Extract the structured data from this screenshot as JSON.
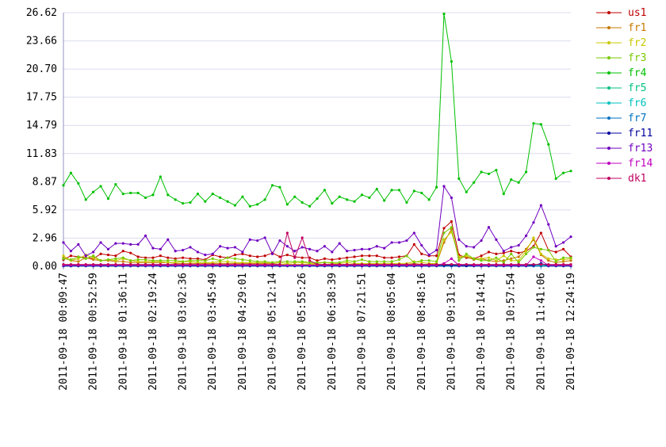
{
  "chart_data": {
    "type": "line",
    "grid": true,
    "legend": "right",
    "ylim": [
      0,
      26.62
    ],
    "yticks": [
      {
        "value": 0,
        "label": "0.00"
      },
      2.96,
      5.92,
      8.87,
      11.83,
      14.79,
      17.75,
      {
        "value": 20.7,
        "label": "20.70"
      },
      23.66,
      26.62
    ],
    "categories": [
      "2011-09-18 00:09:47",
      null,
      null,
      null,
      "2011-09-18 00:52:59",
      null,
      null,
      null,
      "2011-09-18 01:36:11",
      null,
      null,
      null,
      "2011-09-18 02:19:24",
      null,
      null,
      null,
      "2011-09-18 03:02:36",
      null,
      null,
      null,
      "2011-09-18 03:45:49",
      null,
      null,
      null,
      "2011-09-18 04:29:01",
      null,
      null,
      null,
      "2011-09-18 05:12:14",
      null,
      null,
      null,
      "2011-09-18 05:55:26",
      null,
      null,
      null,
      "2011-09-18 06:38:39",
      null,
      null,
      null,
      "2011-09-18 07:21:51",
      null,
      null,
      null,
      "2011-09-18 08:05:04",
      null,
      null,
      null,
      "2011-09-18 08:48:16",
      null,
      null,
      null,
      "2011-09-18 09:31:29",
      null,
      null,
      null,
      "2011-09-18 10:14:41",
      null,
      null,
      null,
      "2011-09-18 10:57:54",
      null,
      null,
      null,
      "2011-09-18 11:41:06",
      null,
      null,
      null,
      "2011-09-18 12:24:19"
    ],
    "series": [
      {
        "name": "us1",
        "color": "#c00000",
        "values": [
          0.7,
          1.1,
          1.0,
          0.9,
          0.8,
          1.3,
          1.2,
          1.1,
          1.6,
          1.4,
          1.0,
          0.9,
          0.9,
          1.1,
          0.9,
          0.8,
          0.9,
          0.8,
          0.8,
          0.7,
          1.2,
          1.0,
          0.9,
          1.2,
          1.3,
          1.1,
          1.0,
          1.1,
          1.4,
          1.0,
          1.2,
          1.0,
          0.9,
          0.9,
          0.6,
          0.8,
          0.7,
          0.8,
          0.9,
          1.0,
          1.1,
          1.1,
          1.1,
          0.9,
          0.9,
          1.0,
          1.1,
          2.3,
          1.3,
          1.1,
          1.1,
          4.0,
          4.7,
          1.2,
          0.9,
          0.8,
          1.1,
          1.5,
          1.3,
          1.4,
          1.6,
          1.4,
          1.6,
          2.1,
          3.5,
          1.7,
          1.5,
          1.8,
          1.0
        ]
      },
      {
        "name": "fr1",
        "color": "#c87800",
        "values": [
          0.9,
          0.6,
          0.5,
          0.9,
          0.7,
          0.6,
          0.6,
          0.5,
          0.5,
          0.4,
          0.4,
          0.4,
          0.4,
          0.4,
          0.4,
          0.3,
          0.3,
          0.3,
          0.3,
          0.3,
          0.3,
          0.3,
          0.3,
          0.3,
          0.3,
          0.3,
          0.3,
          0.3,
          0.3,
          0.2,
          0.2,
          0.2,
          0.2,
          0.2,
          0.2,
          0.2,
          0.2,
          0.2,
          0.2,
          0.2,
          0.2,
          0.2,
          0.2,
          0.2,
          0.2,
          0.2,
          0.2,
          0.3,
          0.2,
          0.2,
          0.3,
          2.5,
          3.9,
          0.9,
          1.0,
          0.7,
          0.8,
          0.6,
          0.5,
          0.6,
          0.8,
          1.0,
          1.8,
          2.8,
          1.2,
          0.6,
          0.4,
          0.5,
          0.6
        ]
      },
      {
        "name": "fr2",
        "color": "#c8c800",
        "values": [
          1.1,
          0.6,
          0.8,
          1.2,
          0.9,
          0.6,
          0.7,
          0.6,
          0.8,
          0.6,
          0.5,
          0.5,
          0.5,
          0.5,
          0.4,
          0.4,
          0.5,
          0.5,
          0.4,
          0.4,
          0.4,
          0.5,
          0.5,
          0.4,
          0.4,
          0.4,
          0.4,
          0.4,
          0.4,
          0.4,
          0.3,
          0.4,
          0.4,
          0.3,
          0.3,
          0.4,
          0.3,
          0.3,
          0.4,
          0.3,
          0.3,
          0.3,
          0.3,
          0.3,
          0.3,
          0.3,
          0.3,
          0.5,
          0.4,
          0.3,
          0.3,
          2.8,
          3.6,
          1.0,
          1.1,
          0.8,
          0.8,
          0.9,
          0.6,
          1.1,
          0.6,
          0.6,
          1.6,
          3.0,
          1.3,
          0.8,
          0.7,
          0.7,
          0.8
        ]
      },
      {
        "name": "fr3",
        "color": "#78c800",
        "values": [
          0.8,
          0.7,
          1.0,
          0.8,
          1.1,
          0.6,
          0.7,
          0.8,
          0.9,
          0.6,
          0.7,
          0.7,
          0.6,
          0.6,
          0.6,
          0.6,
          0.5,
          0.6,
          0.6,
          0.6,
          0.8,
          0.6,
          0.9,
          0.8,
          0.7,
          0.6,
          0.5,
          0.5,
          0.4,
          0.5,
          0.5,
          0.5,
          0.5,
          0.4,
          0.4,
          0.4,
          0.4,
          0.4,
          0.6,
          0.5,
          0.7,
          0.5,
          0.5,
          0.5,
          0.5,
          0.7,
          1.1,
          0.4,
          0.6,
          0.6,
          0.5,
          3.5,
          4.1,
          0.6,
          1.3,
          0.8,
          0.6,
          0.6,
          0.9,
          0.4,
          1.3,
          0.4,
          1.3,
          2.0,
          1.8,
          1.7,
          0.5,
          0.9,
          0.9
        ]
      },
      {
        "name": "fr4",
        "color": "#00c000",
        "values": [
          8.5,
          9.8,
          8.7,
          7.0,
          7.8,
          8.4,
          7.1,
          8.6,
          7.6,
          7.7,
          7.7,
          7.2,
          7.5,
          9.4,
          7.5,
          7.0,
          6.6,
          6.7,
          7.6,
          6.8,
          7.6,
          7.2,
          6.8,
          6.4,
          7.3,
          6.3,
          6.5,
          7.0,
          8.5,
          8.3,
          6.5,
          7.3,
          6.7,
          6.3,
          7.1,
          8.0,
          6.6,
          7.3,
          7.0,
          6.8,
          7.5,
          7.2,
          8.1,
          6.9,
          8.0,
          8.0,
          6.7,
          7.9,
          7.7,
          7.0,
          8.3,
          26.5,
          21.5,
          9.2,
          7.8,
          8.8,
          9.9,
          9.7,
          10.1,
          7.6,
          9.1,
          8.8,
          9.9,
          15.0,
          14.9,
          12.8,
          9.2,
          9.8,
          10.0
        ]
      },
      {
        "name": "fr5",
        "color": "#00c080",
        "values": [
          0.1,
          0.1,
          0.1,
          0.1,
          0.1,
          0.1,
          0.1,
          0.1,
          0.1,
          0.1,
          0.1,
          0.1,
          0.1,
          0.1,
          0.1,
          0.1,
          0.1,
          0.1,
          0.1,
          0.1,
          0.1,
          0.1,
          0.1,
          0.1,
          0.1,
          0.1,
          0.1,
          0.1,
          0.1,
          0.1,
          0.1,
          0.1,
          0.1,
          0.1,
          0.1,
          0.1,
          0.1,
          0.1,
          0.1,
          0.1,
          0.1,
          0.1,
          0.1,
          0.1,
          0.1,
          0.1,
          0.1,
          0.1,
          0.1,
          0.1,
          0.1,
          0.1,
          0.2,
          0.1,
          0.1,
          0.1,
          0.1,
          0.1,
          0.1,
          0.1,
          0.1,
          0.1,
          0.1,
          0.2,
          0.1,
          0.1,
          0.1,
          0.1,
          0.1
        ]
      },
      {
        "name": "fr6",
        "color": "#00c0c0",
        "values": [
          0.05,
          0.05,
          0.05,
          0.05,
          0.05,
          0.05,
          0.05,
          0.05,
          0.05,
          0.05,
          0.05,
          0.05,
          0.05,
          0.05,
          0.05,
          0.05,
          0.05,
          0.05,
          0.05,
          0.05,
          0.05,
          0.05,
          0.05,
          0.05,
          0.05,
          0.05,
          0.05,
          0.05,
          0.05,
          0.05,
          0.05,
          0.05,
          0.05,
          0.05,
          0.05,
          0.05,
          0.05,
          0.05,
          0.05,
          0.05,
          0.05,
          0.05,
          0.05,
          0.05,
          0.05,
          0.05,
          0.05,
          0.05,
          0.05,
          0.05,
          0.05,
          0.05,
          0.05,
          0.05,
          0.05,
          0.05,
          0.05,
          0.05,
          0.05,
          0.05,
          0.05,
          0.05,
          0.05,
          0.05,
          0.05,
          0.05,
          0.05,
          0.05,
          0.05
        ]
      },
      {
        "name": "fr7",
        "color": "#0070c0",
        "values": [
          0.02,
          0.02,
          0.02,
          0.02,
          0.02,
          0.02,
          0.02,
          0.02,
          0.02,
          0.02,
          0.02,
          0.02,
          0.02,
          0.02,
          0.02,
          0.02,
          0.02,
          0.02,
          0.02,
          0.02,
          0.02,
          0.02,
          0.02,
          0.02,
          0.02,
          0.02,
          0.02,
          0.02,
          0.02,
          0.02,
          0.02,
          0.02,
          0.02,
          0.02,
          0.02,
          0.02,
          0.02,
          0.02,
          0.02,
          0.02,
          0.02,
          0.02,
          0.02,
          0.02,
          0.02,
          0.02,
          0.02,
          0.02,
          0.02,
          0.02,
          0.02,
          0.02,
          0.02,
          0.02,
          0.02,
          0.02,
          0.02,
          0.02,
          0.02,
          0.02,
          0.02,
          0.02,
          0.02,
          0.02,
          0.02,
          0.02,
          0.02,
          0.02,
          0.02
        ]
      },
      {
        "name": "fr11",
        "color": "#0000a0",
        "values": [
          0.05,
          0.05,
          0.05,
          0.05,
          0.05,
          0.05,
          0.05,
          0.05,
          0.05,
          0.05,
          0.05,
          0.05,
          0.05,
          0.05,
          0.05,
          0.05,
          0.05,
          0.05,
          0.05,
          0.05,
          0.05,
          0.05,
          0.05,
          0.05,
          0.05,
          0.05,
          0.05,
          0.05,
          0.05,
          0.05,
          0.05,
          0.05,
          0.05,
          0.05,
          0.05,
          0.05,
          0.05,
          0.05,
          0.05,
          0.05,
          0.05,
          0.05,
          0.05,
          0.05,
          0.05,
          0.05,
          0.05,
          0.05,
          0.05,
          0.05,
          0.05,
          0.1,
          0.1,
          0.05,
          0.05,
          0.05,
          0.05,
          0.05,
          0.05,
          0.05,
          0.05,
          0.05,
          0.05,
          0.1,
          0.3,
          0.05,
          0.05,
          0.05,
          0.05
        ]
      },
      {
        "name": "fr13",
        "color": "#7000c0",
        "values": [
          2.5,
          1.6,
          2.3,
          1.1,
          1.5,
          2.5,
          1.8,
          2.4,
          2.4,
          2.3,
          2.3,
          3.2,
          1.9,
          1.8,
          2.8,
          1.6,
          1.7,
          2.0,
          1.5,
          1.2,
          1.3,
          2.1,
          1.9,
          2.0,
          1.5,
          2.8,
          2.7,
          3.0,
          1.3,
          2.7,
          2.1,
          1.6,
          2.0,
          1.8,
          1.6,
          2.1,
          1.5,
          2.4,
          1.6,
          1.7,
          1.8,
          1.8,
          2.1,
          1.9,
          2.5,
          2.5,
          2.7,
          3.5,
          2.2,
          1.2,
          1.7,
          8.4,
          7.2,
          2.8,
          2.1,
          2.0,
          2.7,
          4.1,
          2.8,
          1.6,
          2.0,
          2.2,
          3.2,
          4.6,
          6.4,
          4.4,
          2.1,
          2.5,
          3.1
        ]
      },
      {
        "name": "fr14",
        "color": "#c000c0",
        "values": [
          0.1,
          0.1,
          0.1,
          0.1,
          0.1,
          0.1,
          0.1,
          0.1,
          0.1,
          0.1,
          0.1,
          0.1,
          0.1,
          0.1,
          0.1,
          0.1,
          0.1,
          0.1,
          0.1,
          0.1,
          0.1,
          0.1,
          0.1,
          0.1,
          0.1,
          0.1,
          0.1,
          0.1,
          0.1,
          0.1,
          0.1,
          0.1,
          0.1,
          0.1,
          0.1,
          0.1,
          0.1,
          0.1,
          0.1,
          0.1,
          0.1,
          0.1,
          0.1,
          0.1,
          0.1,
          0.1,
          0.1,
          0.1,
          0.1,
          0.1,
          0.1,
          0.3,
          0.8,
          0.1,
          0.2,
          0.1,
          0.1,
          0.1,
          0.1,
          0.1,
          0.1,
          0.1,
          0.1,
          1.0,
          0.6,
          0.1,
          0.1,
          0.1,
          0.1
        ]
      },
      {
        "name": "dk1",
        "color": "#c00060",
        "values": [
          0.2,
          0.2,
          0.2,
          0.2,
          0.2,
          0.2,
          0.2,
          0.2,
          0.2,
          0.2,
          0.2,
          0.2,
          0.2,
          0.2,
          0.2,
          0.2,
          0.2,
          0.2,
          0.2,
          0.2,
          0.2,
          0.2,
          0.2,
          0.2,
          0.2,
          0.2,
          0.2,
          0.2,
          0.2,
          0.2,
          3.5,
          0.9,
          3.0,
          0.6,
          0.2,
          0.2,
          0.2,
          0.2,
          0.2,
          0.2,
          0.2,
          0.2,
          0.2,
          0.2,
          0.2,
          0.2,
          0.2,
          0.2,
          0.2,
          0.2,
          0.2,
          0.2,
          0.2,
          0.2,
          0.2,
          0.2,
          0.2,
          0.2,
          0.2,
          0.2,
          0.2,
          0.2,
          0.2,
          0.2,
          0.2,
          0.2,
          0.2,
          0.2,
          0.2
        ]
      }
    ]
  }
}
